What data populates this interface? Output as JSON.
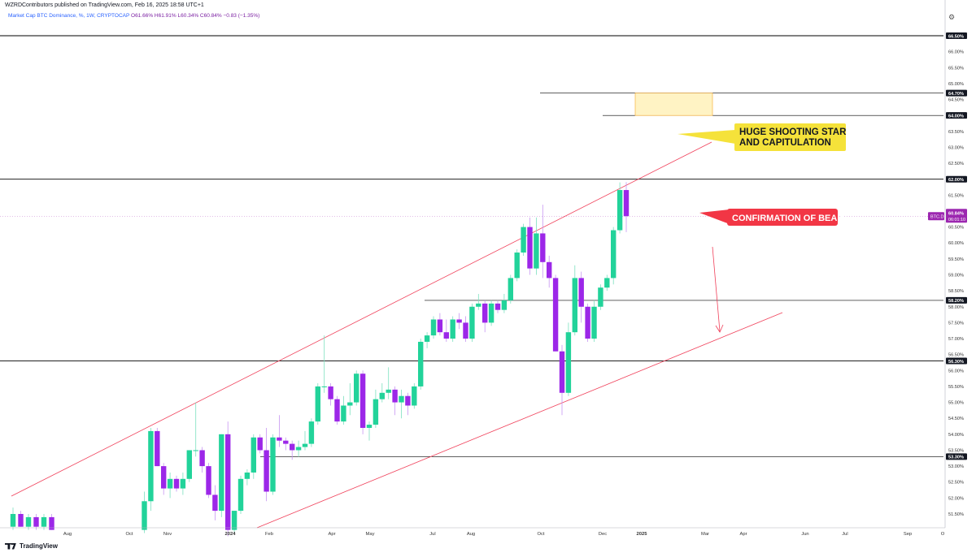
{
  "header": {
    "publisher_line": "WZRDContributors published on TradingView.com, Feb 16, 2025 18:58 UTC+1",
    "legend_symbol": "Market Cap BTC Dominance, %, 1W, CRYPTOCAP",
    "legend_values": "O61.66% H61.91% L60.34% C60.84% −0.83 (−1.35%)"
  },
  "footer": {
    "logo_text": "TradingView"
  },
  "chart_data": {
    "type": "candlestick",
    "symbol": "BTC.D",
    "y_axis": {
      "unit": "%",
      "range": [
        51.0,
        67.0
      ],
      "ticks": [
        "51.50%",
        "52.00%",
        "52.50%",
        "53.00%",
        "53.50%",
        "54.00%",
        "54.50%",
        "55.00%",
        "55.50%",
        "56.00%",
        "56.50%",
        "57.00%",
        "57.50%",
        "58.00%",
        "58.50%",
        "59.00%",
        "59.50%",
        "60.00%",
        "60.50%",
        "61.00%",
        "61.50%",
        "62.50%",
        "63.00%",
        "63.50%",
        "64.50%",
        "65.00%",
        "65.50%",
        "66.00%"
      ]
    },
    "x_axis": {
      "labels": [
        "Aug",
        "Oct",
        "Nov",
        "2024",
        "Feb",
        "Apr",
        "May",
        "Jul",
        "Aug",
        "Oct",
        "Dec",
        "2025",
        "Mar",
        "Apr",
        "Jun",
        "Jul",
        "Sep",
        "O"
      ]
    },
    "horizontal_levels": [
      {
        "value": 66.5,
        "label": "66.50%",
        "color": "#000000"
      },
      {
        "value": 64.7,
        "label": "64.70%",
        "color": "#000000"
      },
      {
        "value": 64.0,
        "label": "64.00%",
        "color": "#000000"
      },
      {
        "value": 62.0,
        "label": "62.00%",
        "color": "#000000"
      },
      {
        "value": 58.2,
        "label": "58.20%",
        "color": "#000000"
      },
      {
        "value": 56.3,
        "label": "56.30%",
        "color": "#000000"
      },
      {
        "value": 53.3,
        "label": "53.30%",
        "color": "#000000"
      }
    ],
    "current_price": {
      "value": 60.84,
      "label": "60.84%",
      "countdown": "06:01:10",
      "tag": "BTC.D",
      "color": "#9c27b0"
    },
    "colors": {
      "up": "#22d39a",
      "down": "#9c27e8",
      "channel": "#f0405a",
      "annotation_yellow": "#f5e23a",
      "annotation_red": "#f23645"
    },
    "annotations": [
      {
        "text_lines": [
          "HUGE SHOOTING STAR",
          "AND CAPITULATION"
        ],
        "style": "yellow"
      },
      {
        "text_lines": [
          "CONFIRMATION OF BEAR"
        ],
        "style": "red"
      }
    ],
    "candles": [
      {
        "o": 51.1,
        "h": 51.7,
        "l": 51.0,
        "c": 51.5
      },
      {
        "o": 51.5,
        "h": 51.6,
        "l": 51.1,
        "c": 51.1
      },
      {
        "o": 51.1,
        "h": 51.5,
        "l": 51.0,
        "c": 51.4
      },
      {
        "o": 51.4,
        "h": 51.5,
        "l": 51.0,
        "c": 51.1
      },
      {
        "o": 51.1,
        "h": 51.5,
        "l": 51.0,
        "c": 51.4
      },
      {
        "o": 51.4,
        "h": 51.5,
        "l": 51.0,
        "c": 51.0
      },
      {
        "o": 51.0,
        "h": 52.2,
        "l": 50.9,
        "c": 51.9
      },
      {
        "o": 51.9,
        "h": 54.2,
        "l": 51.6,
        "c": 54.1
      },
      {
        "o": 54.1,
        "h": 54.2,
        "l": 53.0,
        "c": 53.0
      },
      {
        "o": 53.0,
        "h": 53.1,
        "l": 52.1,
        "c": 52.3
      },
      {
        "o": 52.3,
        "h": 52.8,
        "l": 52.0,
        "c": 52.6
      },
      {
        "o": 52.6,
        "h": 52.7,
        "l": 52.2,
        "c": 52.3
      },
      {
        "o": 52.3,
        "h": 52.8,
        "l": 52.1,
        "c": 52.6
      },
      {
        "o": 52.6,
        "h": 53.5,
        "l": 52.5,
        "c": 53.5
      },
      {
        "o": 53.5,
        "h": 55.0,
        "l": 53.3,
        "c": 53.5
      },
      {
        "o": 53.5,
        "h": 53.6,
        "l": 52.8,
        "c": 53.0
      },
      {
        "o": 53.0,
        "h": 53.1,
        "l": 52.0,
        "c": 52.1
      },
      {
        "o": 52.1,
        "h": 52.4,
        "l": 51.3,
        "c": 51.6
      },
      {
        "o": 51.6,
        "h": 54.0,
        "l": 51.4,
        "c": 54.0
      },
      {
        "o": 54.0,
        "h": 54.4,
        "l": 50.8,
        "c": 51.0
      },
      {
        "o": 51.0,
        "h": 51.6,
        "l": 50.9,
        "c": 51.6
      },
      {
        "o": 51.6,
        "h": 52.7,
        "l": 51.5,
        "c": 52.6
      },
      {
        "o": 52.6,
        "h": 52.9,
        "l": 52.4,
        "c": 52.8
      },
      {
        "o": 52.8,
        "h": 54.0,
        "l": 52.6,
        "c": 53.9
      },
      {
        "o": 53.9,
        "h": 54.0,
        "l": 53.4,
        "c": 53.5
      },
      {
        "o": 53.5,
        "h": 54.2,
        "l": 51.9,
        "c": 52.2
      },
      {
        "o": 52.2,
        "h": 54.0,
        "l": 52.1,
        "c": 53.9
      },
      {
        "o": 53.9,
        "h": 54.6,
        "l": 53.6,
        "c": 53.8
      },
      {
        "o": 53.8,
        "h": 53.9,
        "l": 53.5,
        "c": 53.7
      },
      {
        "o": 53.7,
        "h": 53.8,
        "l": 53.2,
        "c": 53.5
      },
      {
        "o": 53.5,
        "h": 53.8,
        "l": 53.3,
        "c": 53.6
      },
      {
        "o": 53.6,
        "h": 54.1,
        "l": 53.5,
        "c": 53.7
      },
      {
        "o": 53.7,
        "h": 54.5,
        "l": 53.6,
        "c": 54.4
      },
      {
        "o": 54.4,
        "h": 55.6,
        "l": 54.3,
        "c": 55.5
      },
      {
        "o": 55.5,
        "h": 57.1,
        "l": 55.3,
        "c": 55.5
      },
      {
        "o": 55.5,
        "h": 55.6,
        "l": 54.9,
        "c": 55.1
      },
      {
        "o": 55.1,
        "h": 55.2,
        "l": 54.3,
        "c": 54.4
      },
      {
        "o": 54.4,
        "h": 55.2,
        "l": 54.3,
        "c": 54.9
      },
      {
        "o": 54.9,
        "h": 55.6,
        "l": 54.6,
        "c": 55.0
      },
      {
        "o": 55.0,
        "h": 56.0,
        "l": 54.9,
        "c": 55.9
      },
      {
        "o": 55.9,
        "h": 56.0,
        "l": 54.0,
        "c": 54.2
      },
      {
        "o": 54.2,
        "h": 54.4,
        "l": 53.8,
        "c": 54.3
      },
      {
        "o": 54.3,
        "h": 55.4,
        "l": 54.2,
        "c": 55.1
      },
      {
        "o": 55.1,
        "h": 55.6,
        "l": 55.0,
        "c": 55.3
      },
      {
        "o": 55.3,
        "h": 56.1,
        "l": 55.1,
        "c": 55.4
      },
      {
        "o": 55.4,
        "h": 55.5,
        "l": 54.6,
        "c": 55.0
      },
      {
        "o": 55.0,
        "h": 55.4,
        "l": 54.5,
        "c": 55.2
      },
      {
        "o": 55.2,
        "h": 55.3,
        "l": 54.6,
        "c": 54.9
      },
      {
        "o": 54.9,
        "h": 55.6,
        "l": 54.8,
        "c": 55.5
      },
      {
        "o": 55.5,
        "h": 57.0,
        "l": 55.4,
        "c": 56.9
      },
      {
        "o": 56.9,
        "h": 57.2,
        "l": 56.7,
        "c": 57.1
      },
      {
        "o": 57.1,
        "h": 57.7,
        "l": 57.0,
        "c": 57.6
      },
      {
        "o": 57.6,
        "h": 57.8,
        "l": 57.1,
        "c": 57.2
      },
      {
        "o": 57.2,
        "h": 57.6,
        "l": 56.9,
        "c": 57.0
      },
      {
        "o": 57.0,
        "h": 57.7,
        "l": 56.9,
        "c": 57.6
      },
      {
        "o": 57.6,
        "h": 57.8,
        "l": 57.3,
        "c": 57.5
      },
      {
        "o": 57.5,
        "h": 57.7,
        "l": 56.9,
        "c": 57.0
      },
      {
        "o": 57.0,
        "h": 58.1,
        "l": 56.9,
        "c": 58.0
      },
      {
        "o": 58.0,
        "h": 58.4,
        "l": 57.9,
        "c": 58.1
      },
      {
        "o": 58.1,
        "h": 58.2,
        "l": 57.2,
        "c": 57.5
      },
      {
        "o": 57.5,
        "h": 58.2,
        "l": 57.4,
        "c": 58.1
      },
      {
        "o": 58.1,
        "h": 58.2,
        "l": 57.8,
        "c": 57.9
      },
      {
        "o": 57.9,
        "h": 58.4,
        "l": 57.8,
        "c": 58.2
      },
      {
        "o": 58.2,
        "h": 59.0,
        "l": 58.1,
        "c": 58.9
      },
      {
        "o": 58.9,
        "h": 59.8,
        "l": 58.8,
        "c": 59.7
      },
      {
        "o": 59.7,
        "h": 60.6,
        "l": 59.6,
        "c": 60.5
      },
      {
        "o": 60.5,
        "h": 60.8,
        "l": 59.0,
        "c": 59.2
      },
      {
        "o": 59.2,
        "h": 60.8,
        "l": 59.0,
        "c": 60.3
      },
      {
        "o": 60.3,
        "h": 61.2,
        "l": 58.9,
        "c": 59.4
      },
      {
        "o": 59.4,
        "h": 59.6,
        "l": 58.6,
        "c": 58.9
      },
      {
        "o": 58.9,
        "h": 59.0,
        "l": 56.6,
        "c": 56.6
      },
      {
        "o": 56.6,
        "h": 56.8,
        "l": 54.6,
        "c": 55.3
      },
      {
        "o": 55.3,
        "h": 57.5,
        "l": 55.2,
        "c": 57.2
      },
      {
        "o": 57.2,
        "h": 59.3,
        "l": 57.1,
        "c": 58.9
      },
      {
        "o": 58.9,
        "h": 59.1,
        "l": 57.5,
        "c": 58.0
      },
      {
        "o": 58.0,
        "h": 58.1,
        "l": 56.9,
        "c": 57.0
      },
      {
        "o": 57.0,
        "h": 58.2,
        "l": 56.9,
        "c": 58.0
      },
      {
        "o": 58.0,
        "h": 58.7,
        "l": 57.9,
        "c": 58.6
      },
      {
        "o": 58.6,
        "h": 59.0,
        "l": 58.5,
        "c": 58.9
      },
      {
        "o": 58.9,
        "h": 60.5,
        "l": 58.7,
        "c": 60.4
      },
      {
        "o": 60.4,
        "h": 61.9,
        "l": 60.3,
        "c": 61.66
      },
      {
        "o": 61.66,
        "h": 61.91,
        "l": 60.34,
        "c": 60.84
      }
    ]
  }
}
